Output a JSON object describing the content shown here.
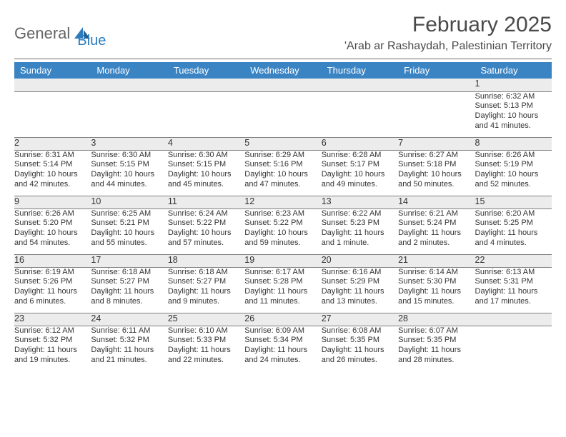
{
  "brand": {
    "word1": "General",
    "word2": "Blue"
  },
  "title": "February 2025",
  "location": "'Arab ar Rashaydah, Palestinian Territory",
  "colors": {
    "header_bg": "#3b84c4",
    "header_text": "#ffffff",
    "daynum_bg": "#ececec",
    "text": "#333333",
    "divider": "#6c6c6c",
    "logo_gray": "#656565",
    "logo_blue": "#2b7bbd"
  },
  "typography": {
    "title_fontsize": 30,
    "location_fontsize": 16,
    "dayheader_fontsize": 13,
    "daynum_fontsize": 12.5,
    "cell_fontsize": 11
  },
  "day_headers": [
    "Sunday",
    "Monday",
    "Tuesday",
    "Wednesday",
    "Thursday",
    "Friday",
    "Saturday"
  ],
  "weeks": [
    [
      {
        "num": "",
        "sunrise": "",
        "sunset": "",
        "daylight": ""
      },
      {
        "num": "",
        "sunrise": "",
        "sunset": "",
        "daylight": ""
      },
      {
        "num": "",
        "sunrise": "",
        "sunset": "",
        "daylight": ""
      },
      {
        "num": "",
        "sunrise": "",
        "sunset": "",
        "daylight": ""
      },
      {
        "num": "",
        "sunrise": "",
        "sunset": "",
        "daylight": ""
      },
      {
        "num": "",
        "sunrise": "",
        "sunset": "",
        "daylight": ""
      },
      {
        "num": "1",
        "sunrise": "Sunrise: 6:32 AM",
        "sunset": "Sunset: 5:13 PM",
        "daylight": "Daylight: 10 hours and 41 minutes."
      }
    ],
    [
      {
        "num": "2",
        "sunrise": "Sunrise: 6:31 AM",
        "sunset": "Sunset: 5:14 PM",
        "daylight": "Daylight: 10 hours and 42 minutes."
      },
      {
        "num": "3",
        "sunrise": "Sunrise: 6:30 AM",
        "sunset": "Sunset: 5:15 PM",
        "daylight": "Daylight: 10 hours and 44 minutes."
      },
      {
        "num": "4",
        "sunrise": "Sunrise: 6:30 AM",
        "sunset": "Sunset: 5:15 PM",
        "daylight": "Daylight: 10 hours and 45 minutes."
      },
      {
        "num": "5",
        "sunrise": "Sunrise: 6:29 AM",
        "sunset": "Sunset: 5:16 PM",
        "daylight": "Daylight: 10 hours and 47 minutes."
      },
      {
        "num": "6",
        "sunrise": "Sunrise: 6:28 AM",
        "sunset": "Sunset: 5:17 PM",
        "daylight": "Daylight: 10 hours and 49 minutes."
      },
      {
        "num": "7",
        "sunrise": "Sunrise: 6:27 AM",
        "sunset": "Sunset: 5:18 PM",
        "daylight": "Daylight: 10 hours and 50 minutes."
      },
      {
        "num": "8",
        "sunrise": "Sunrise: 6:26 AM",
        "sunset": "Sunset: 5:19 PM",
        "daylight": "Daylight: 10 hours and 52 minutes."
      }
    ],
    [
      {
        "num": "9",
        "sunrise": "Sunrise: 6:26 AM",
        "sunset": "Sunset: 5:20 PM",
        "daylight": "Daylight: 10 hours and 54 minutes."
      },
      {
        "num": "10",
        "sunrise": "Sunrise: 6:25 AM",
        "sunset": "Sunset: 5:21 PM",
        "daylight": "Daylight: 10 hours and 55 minutes."
      },
      {
        "num": "11",
        "sunrise": "Sunrise: 6:24 AM",
        "sunset": "Sunset: 5:22 PM",
        "daylight": "Daylight: 10 hours and 57 minutes."
      },
      {
        "num": "12",
        "sunrise": "Sunrise: 6:23 AM",
        "sunset": "Sunset: 5:22 PM",
        "daylight": "Daylight: 10 hours and 59 minutes."
      },
      {
        "num": "13",
        "sunrise": "Sunrise: 6:22 AM",
        "sunset": "Sunset: 5:23 PM",
        "daylight": "Daylight: 11 hours and 1 minute."
      },
      {
        "num": "14",
        "sunrise": "Sunrise: 6:21 AM",
        "sunset": "Sunset: 5:24 PM",
        "daylight": "Daylight: 11 hours and 2 minutes."
      },
      {
        "num": "15",
        "sunrise": "Sunrise: 6:20 AM",
        "sunset": "Sunset: 5:25 PM",
        "daylight": "Daylight: 11 hours and 4 minutes."
      }
    ],
    [
      {
        "num": "16",
        "sunrise": "Sunrise: 6:19 AM",
        "sunset": "Sunset: 5:26 PM",
        "daylight": "Daylight: 11 hours and 6 minutes."
      },
      {
        "num": "17",
        "sunrise": "Sunrise: 6:18 AM",
        "sunset": "Sunset: 5:27 PM",
        "daylight": "Daylight: 11 hours and 8 minutes."
      },
      {
        "num": "18",
        "sunrise": "Sunrise: 6:18 AM",
        "sunset": "Sunset: 5:27 PM",
        "daylight": "Daylight: 11 hours and 9 minutes."
      },
      {
        "num": "19",
        "sunrise": "Sunrise: 6:17 AM",
        "sunset": "Sunset: 5:28 PM",
        "daylight": "Daylight: 11 hours and 11 minutes."
      },
      {
        "num": "20",
        "sunrise": "Sunrise: 6:16 AM",
        "sunset": "Sunset: 5:29 PM",
        "daylight": "Daylight: 11 hours and 13 minutes."
      },
      {
        "num": "21",
        "sunrise": "Sunrise: 6:14 AM",
        "sunset": "Sunset: 5:30 PM",
        "daylight": "Daylight: 11 hours and 15 minutes."
      },
      {
        "num": "22",
        "sunrise": "Sunrise: 6:13 AM",
        "sunset": "Sunset: 5:31 PM",
        "daylight": "Daylight: 11 hours and 17 minutes."
      }
    ],
    [
      {
        "num": "23",
        "sunrise": "Sunrise: 6:12 AM",
        "sunset": "Sunset: 5:32 PM",
        "daylight": "Daylight: 11 hours and 19 minutes."
      },
      {
        "num": "24",
        "sunrise": "Sunrise: 6:11 AM",
        "sunset": "Sunset: 5:32 PM",
        "daylight": "Daylight: 11 hours and 21 minutes."
      },
      {
        "num": "25",
        "sunrise": "Sunrise: 6:10 AM",
        "sunset": "Sunset: 5:33 PM",
        "daylight": "Daylight: 11 hours and 22 minutes."
      },
      {
        "num": "26",
        "sunrise": "Sunrise: 6:09 AM",
        "sunset": "Sunset: 5:34 PM",
        "daylight": "Daylight: 11 hours and 24 minutes."
      },
      {
        "num": "27",
        "sunrise": "Sunrise: 6:08 AM",
        "sunset": "Sunset: 5:35 PM",
        "daylight": "Daylight: 11 hours and 26 minutes."
      },
      {
        "num": "28",
        "sunrise": "Sunrise: 6:07 AM",
        "sunset": "Sunset: 5:35 PM",
        "daylight": "Daylight: 11 hours and 28 minutes."
      },
      {
        "num": "",
        "sunrise": "",
        "sunset": "",
        "daylight": ""
      }
    ]
  ]
}
